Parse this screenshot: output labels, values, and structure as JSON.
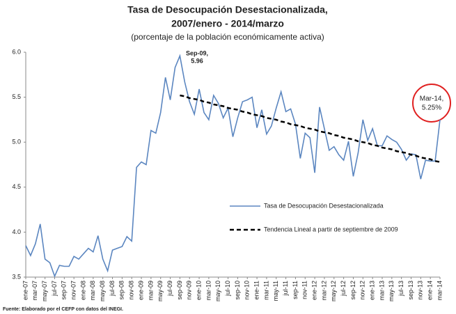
{
  "chart_data": {
    "type": "line",
    "title": [
      "Tasa de Desocupación Desestacionalizada,",
      "2007/enero - 2014/marzo"
    ],
    "subtitle": "(porcentaje de la población económicamente activa)",
    "source": "Fuente: Elaborado por el CEFP con datos del INEGI.",
    "annotations": [
      [
        "Sep-09,",
        "5.96"
      ],
      [
        "Mar-14,",
        "5.25%"
      ]
    ],
    "categories": [
      "ene-07",
      null,
      "mar-07",
      null,
      "may-07",
      null,
      "jul-07",
      null,
      "sep-07",
      null,
      "nov-07",
      null,
      "ene-08",
      null,
      "mar-08",
      null,
      "may-08",
      null,
      "jul-08",
      null,
      "sep-08",
      null,
      "nov-08",
      null,
      "ene-09",
      null,
      "mar-09",
      null,
      "may-09",
      null,
      "jul-09",
      null,
      "sep-09",
      null,
      "nov-09",
      null,
      "ene-10",
      null,
      "mar-10",
      null,
      "may-10",
      null,
      "jul-10",
      null,
      "sep-10",
      null,
      "nov-10",
      null,
      "ene-11",
      null,
      "mar-11",
      null,
      "may-11",
      null,
      "jul-11",
      null,
      "sep-11",
      null,
      "nov-11",
      null,
      "ene-12",
      null,
      "mar-12",
      null,
      "may-12",
      null,
      "jul-12",
      null,
      "sep-12",
      null,
      "nov-12",
      null,
      "ene-13",
      null,
      "mar-13",
      null,
      "may-13",
      null,
      "jul-13",
      null,
      "sep-13",
      null,
      "nov-13",
      null,
      "ene-14",
      null,
      "mar-14"
    ],
    "series": [
      {
        "name": "Tasa de Desocupación Desestacionalizada",
        "color": "#5b86c0",
        "dash": false,
        "values": [
          3.85,
          3.74,
          3.87,
          4.09,
          3.7,
          3.66,
          3.51,
          3.63,
          3.62,
          3.62,
          3.73,
          3.7,
          3.76,
          3.82,
          3.78,
          3.96,
          3.7,
          3.57,
          3.8,
          3.82,
          3.84,
          3.95,
          3.9,
          4.72,
          4.78,
          4.75,
          5.13,
          5.1,
          5.33,
          5.72,
          5.47,
          5.83,
          5.96,
          5.67,
          5.45,
          5.31,
          5.59,
          5.33,
          5.25,
          5.52,
          5.43,
          5.27,
          5.38,
          5.06,
          5.27,
          5.45,
          5.47,
          5.5,
          5.16,
          5.36,
          5.09,
          5.18,
          5.38,
          5.56,
          5.34,
          5.37,
          5.2,
          4.82,
          5.1,
          5.05,
          4.66,
          5.39,
          5.15,
          4.91,
          4.95,
          4.86,
          4.8,
          5.01,
          4.62,
          4.88,
          5.25,
          5.02,
          5.15,
          4.96,
          4.96,
          5.07,
          5.03,
          5.0,
          4.92,
          4.8,
          4.87,
          4.86,
          4.59,
          4.8,
          4.79,
          4.79,
          5.25
        ]
      },
      {
        "name": "Tendencia Lineal a partir de septiembre de 2009",
        "color": "#000000",
        "dash": true,
        "values": [
          null,
          null,
          null,
          null,
          null,
          null,
          null,
          null,
          null,
          null,
          null,
          null,
          null,
          null,
          null,
          null,
          null,
          null,
          null,
          null,
          null,
          null,
          null,
          null,
          null,
          null,
          null,
          null,
          null,
          null,
          null,
          null,
          5.52,
          5.51,
          5.49,
          5.48,
          5.47,
          5.45,
          5.44,
          5.42,
          5.41,
          5.4,
          5.38,
          5.37,
          5.36,
          5.34,
          5.33,
          5.31,
          5.3,
          5.29,
          5.27,
          5.26,
          5.25,
          5.23,
          5.22,
          5.2,
          5.19,
          5.18,
          5.16,
          5.15,
          5.14,
          5.12,
          5.11,
          5.1,
          5.08,
          5.07,
          5.05,
          5.04,
          5.03,
          5.01,
          5.0,
          4.99,
          4.97,
          4.96,
          4.94,
          4.93,
          4.92,
          4.9,
          4.89,
          4.88,
          4.86,
          4.85,
          4.83,
          4.82,
          4.81,
          4.79,
          4.78
        ]
      }
    ],
    "ylim": [
      3.5,
      6.0
    ],
    "yticks": [
      3.5,
      {
        "value": 4,
        "label": "4.0"
      },
      4.5,
      {
        "value": 5,
        "label": "5.0"
      },
      5.5,
      {
        "value": 6,
        "label": "6.0"
      }
    ],
    "grid": false
  }
}
